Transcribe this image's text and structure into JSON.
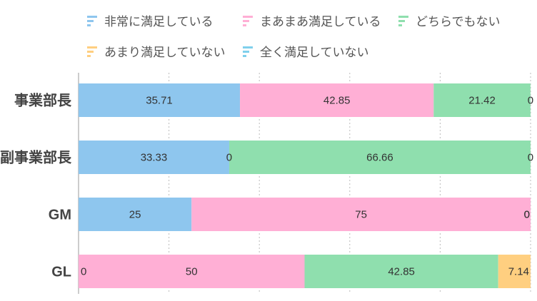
{
  "chart_data": {
    "type": "bar",
    "orientation": "horizontal",
    "stacked": true,
    "categories": [
      "事業部長",
      "副事業部長",
      "GM",
      "GL"
    ],
    "series": [
      {
        "name": "非常に満足している",
        "color": "#8ec6ee",
        "values": [
          35.71,
          33.33,
          25,
          0
        ]
      },
      {
        "name": "まあまあ満足している",
        "color": "#ffafd5",
        "values": [
          42.85,
          0,
          75,
          50
        ]
      },
      {
        "name": "どちらでもない",
        "color": "#8fdfae",
        "values": [
          21.42,
          66.66,
          0,
          42.85
        ]
      },
      {
        "name": "あまり満足していない",
        "color": "#ffcf80",
        "values": [
          0,
          0,
          0,
          7.14
        ]
      },
      {
        "name": "全く満足していない",
        "color": "#7fd0ec",
        "values": [
          0,
          0,
          0,
          0
        ]
      }
    ],
    "xlim": [
      0,
      100
    ],
    "grid": true,
    "legend": "top",
    "legend_icon": "bars-icon"
  }
}
